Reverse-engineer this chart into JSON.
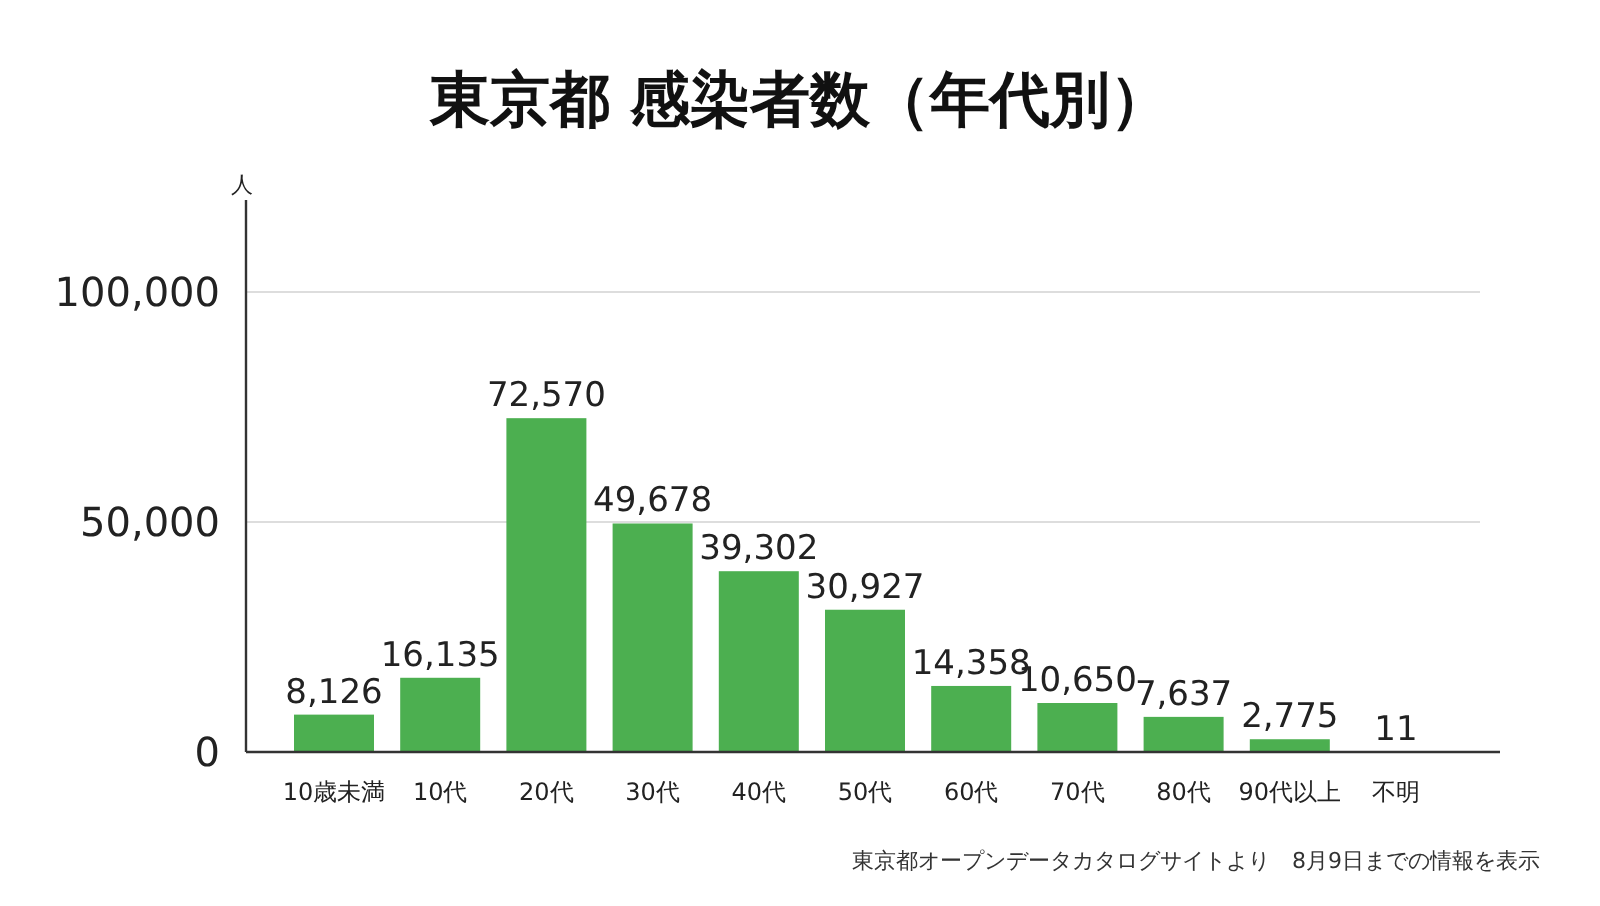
{
  "chart_data": {
    "type": "bar",
    "title": "東京都 感染者数（年代別）",
    "ylabel": "人",
    "categories": [
      "10歳未満",
      "10代",
      "20代",
      "30代",
      "40代",
      "50代",
      "60代",
      "70代",
      "80代",
      "90代以上",
      "不明"
    ],
    "values": [
      8126,
      16135,
      72570,
      49678,
      39302,
      30927,
      14358,
      10650,
      7637,
      2775,
      11
    ],
    "value_labels": [
      "8,126",
      "16,135",
      "72,570",
      "49,678",
      "39,302",
      "30,927",
      "14,358",
      "10,650",
      "7,637",
      "2,775",
      "11"
    ],
    "color": "#4caf50",
    "ylim": [
      0,
      120000
    ],
    "yticks": [
      {
        "value": 0,
        "label": "0"
      },
      {
        "value": 50000,
        "label": "50,000"
      },
      {
        "value": 100000,
        "label": "100,000"
      }
    ],
    "grid": "y",
    "annotations": [
      "東京都オープンデータカタログサイトより　8月9日までの情報を表示"
    ]
  }
}
